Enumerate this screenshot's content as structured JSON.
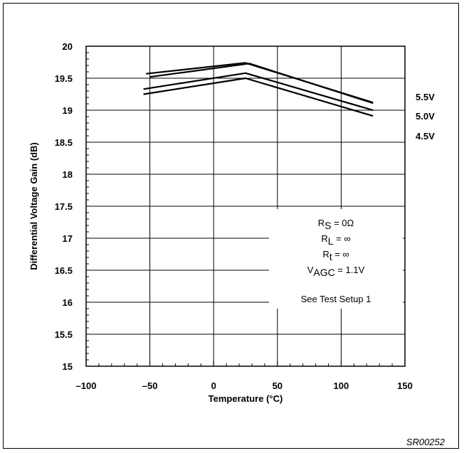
{
  "chart_data": {
    "type": "line",
    "xlabel": "Temperature (°C)",
    "ylabel": "Differential Voltage Gain (dB)",
    "xlim": [
      -100,
      150
    ],
    "ylim": [
      15,
      20
    ],
    "xticks": [
      -100,
      -50,
      0,
      50,
      100,
      150
    ],
    "xtick_labels": [
      "–100",
      "–50",
      "0",
      "50",
      "100",
      "150"
    ],
    "yticks": [
      15,
      15.5,
      16,
      16.5,
      17,
      17.5,
      18,
      18.5,
      19,
      19.5,
      20
    ],
    "ytick_labels": [
      "15",
      "15.5",
      "16",
      "16.5",
      "17",
      "17.5",
      "18",
      "18.5",
      "19",
      "19.5",
      "20"
    ],
    "grid": true,
    "series": [
      {
        "name": "5.5V",
        "x": [
          -53,
          25,
          125
        ],
        "y": [
          19.57,
          19.74,
          19.12
        ]
      },
      {
        "name": "5.0V",
        "x": [
          -50,
          28,
          125
        ],
        "y": [
          19.52,
          19.73,
          19.11
        ]
      },
      {
        "name": "4.5V",
        "x": [
          -55,
          25,
          125
        ],
        "y": [
          19.33,
          19.58,
          19.0
        ]
      },
      {
        "name": "",
        "x": [
          -55,
          25,
          125
        ],
        "y": [
          19.25,
          19.5,
          18.91
        ]
      }
    ],
    "annotation": {
      "rs": {
        "main": "R",
        "sub": "S",
        "rest": " = 0Ω"
      },
      "rl": {
        "main": "R",
        "sub": "L",
        "rest": " = ∞"
      },
      "rt": {
        "main": "R",
        "sub": "t",
        "rest": " = ∞"
      },
      "vagc": {
        "main": "V",
        "sub": "AGC",
        "rest": " = 1.1V"
      },
      "setup": "See Test Setup 1"
    },
    "figure_id": "SR00252"
  }
}
